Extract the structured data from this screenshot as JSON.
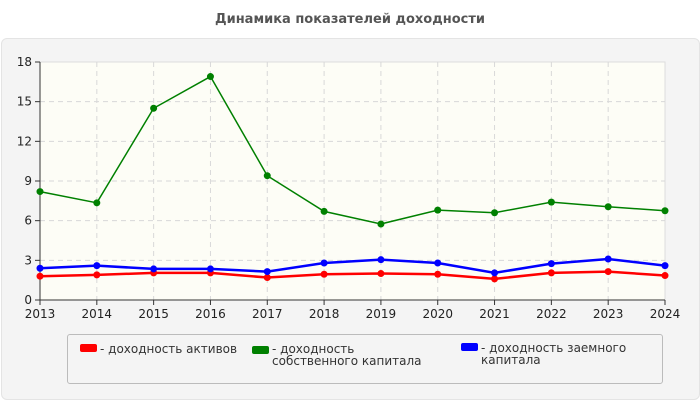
{
  "chart_data": {
    "type": "line",
    "title": "Динамика показателей доходности",
    "x": [
      "2013",
      "2014",
      "2015",
      "2016",
      "2017",
      "2018",
      "2019",
      "2020",
      "2021",
      "2022",
      "2023",
      "2024"
    ],
    "ylim": [
      0,
      18
    ],
    "yticks": [
      0,
      3,
      6,
      9,
      12,
      15,
      18
    ],
    "grid": true,
    "legend_position": "bottom",
    "series": [
      {
        "name": "- доходность активов",
        "color": "#ff0000",
        "values": [
          1.8,
          1.9,
          2.05,
          2.05,
          1.7,
          1.95,
          2.0,
          1.95,
          1.6,
          2.05,
          2.15,
          1.85
        ]
      },
      {
        "name": "- доходность собственного капитала",
        "color": "#008000",
        "values": [
          8.2,
          7.35,
          14.5,
          16.9,
          9.4,
          6.7,
          5.75,
          6.8,
          6.6,
          7.4,
          7.05,
          6.75
        ]
      },
      {
        "name": "- доходность заемного капитала",
        "color": "#0000ff",
        "values": [
          2.4,
          2.6,
          2.35,
          2.35,
          2.15,
          2.8,
          3.05,
          2.8,
          2.05,
          2.75,
          3.1,
          2.6
        ]
      }
    ]
  }
}
